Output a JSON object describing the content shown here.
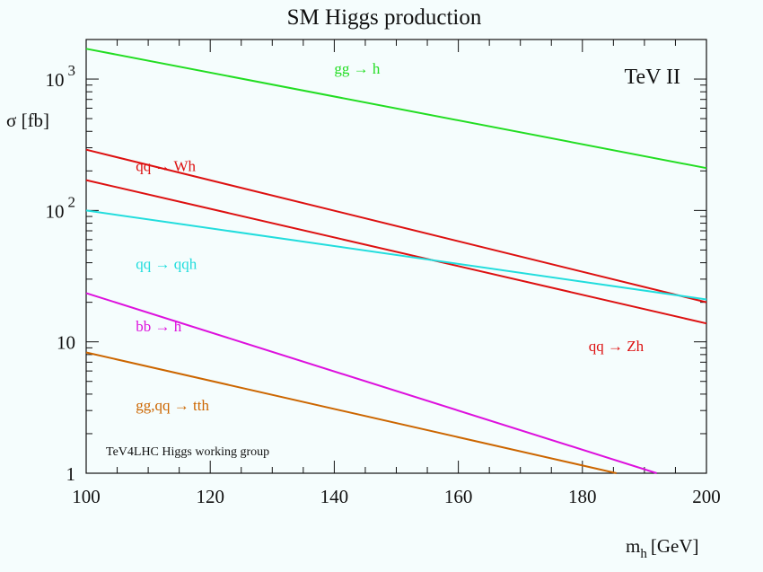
{
  "chart_data": {
    "type": "line",
    "title": "SM Higgs production",
    "xlabel": "m",
    "xlabel_sub": "h",
    "xlabel_unit": "[GeV]",
    "ylabel": "σ [fb]",
    "xlim": [
      100,
      200
    ],
    "ylim": [
      1,
      2000
    ],
    "yscale": "log",
    "grid": false,
    "x_ticks": [
      100,
      120,
      140,
      160,
      180,
      200
    ],
    "x_tick_labels": [
      "100",
      "120",
      "140",
      "160",
      "180",
      "200"
    ],
    "y_tick_labels": [
      {
        "value": 1000,
        "base": "10",
        "exp": "3"
      },
      {
        "value": 100,
        "base": "10",
        "exp": "2"
      },
      {
        "value": 10,
        "base": "10",
        "exp": ""
      },
      {
        "value": 1,
        "base": "1",
        "exp": ""
      }
    ],
    "annotations": {
      "experiment": "TeV II",
      "group": "TeV4LHC Higgs working group"
    },
    "series": [
      {
        "name": "gg → h",
        "color": "#22dd22",
        "x": [
          100,
          200
        ],
        "y": [
          1700,
          210
        ],
        "label_at": [
          140,
          1100
        ]
      },
      {
        "name": "qq → Wh",
        "color": "#dd1111",
        "x": [
          100,
          200
        ],
        "y": [
          290,
          20
        ],
        "label_at": [
          108,
          200
        ]
      },
      {
        "name": "qq → Zh",
        "color": "#dd1111",
        "x": [
          100,
          200
        ],
        "y": [
          170,
          13.8
        ],
        "label_at": [
          181,
          8.5
        ]
      },
      {
        "name": "qq → qqh",
        "color": "#22dddd",
        "x": [
          100,
          200
        ],
        "y": [
          100,
          21
        ],
        "label_at": [
          108,
          36
        ]
      },
      {
        "name": "bb → h",
        "color": "#dd11dd",
        "x": [
          100,
          192
        ],
        "y": [
          23.5,
          1
        ],
        "label_at": [
          108,
          12
        ]
      },
      {
        "name": "gg,qq → tth",
        "color": "#cc6600",
        "x": [
          100,
          185.5
        ],
        "y": [
          8.3,
          1
        ],
        "label_at": [
          108,
          3
        ]
      }
    ]
  }
}
